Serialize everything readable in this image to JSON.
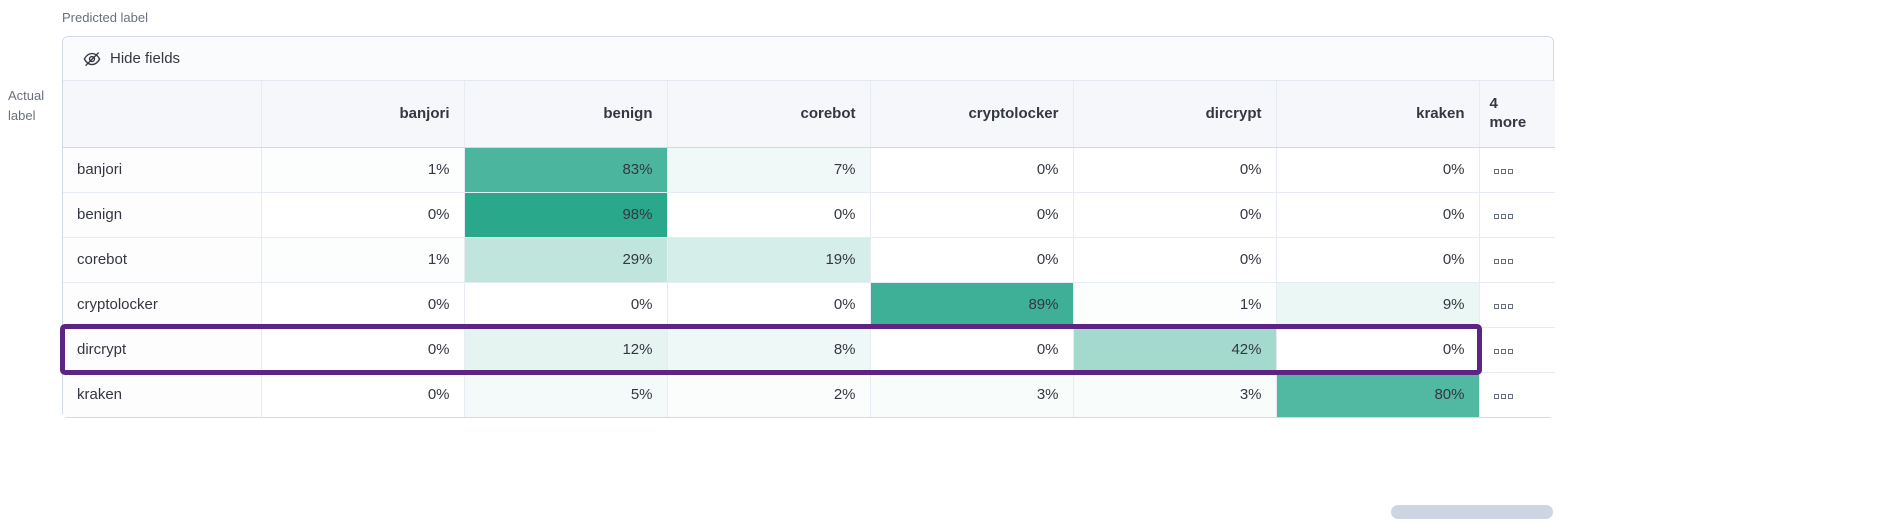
{
  "axes": {
    "predicted": "Predicted label",
    "actual": "Actual\nlabel"
  },
  "toolbar": {
    "hide_fields": "Hide fields",
    "hide_fields_icon": "eye-closed-icon"
  },
  "chart_data": {
    "type": "heatmap",
    "x_axis_label": "Predicted label",
    "y_axis_label": "Actual label",
    "columns": [
      "banjori",
      "benign",
      "corebot",
      "cryptolocker",
      "dircrypt",
      "kraken"
    ],
    "more_columns_label": "4 more",
    "rows": [
      {
        "label": "banjori",
        "values": [
          "1%",
          "83%",
          "7%",
          "0%",
          "0%",
          "0%"
        ]
      },
      {
        "label": "benign",
        "values": [
          "0%",
          "98%",
          "0%",
          "0%",
          "0%",
          "0%"
        ]
      },
      {
        "label": "corebot",
        "values": [
          "1%",
          "29%",
          "19%",
          "0%",
          "0%",
          "0%"
        ]
      },
      {
        "label": "cryptolocker",
        "values": [
          "0%",
          "0%",
          "0%",
          "89%",
          "1%",
          "9%"
        ]
      },
      {
        "label": "dircrypt",
        "values": [
          "0%",
          "12%",
          "8%",
          "0%",
          "42%",
          "0%"
        ],
        "highlighted": true
      },
      {
        "label": "kraken",
        "values": [
          "0%",
          "5%",
          "2%",
          "3%",
          "3%",
          "80%"
        ]
      }
    ],
    "value_range": [
      0,
      100
    ],
    "cell_value_unit": "%",
    "row_actions_icon": "boxes-horizontal-icon",
    "colors": {
      "heatmap_base": "#26a68a",
      "highlight_outline": "#5c2483"
    }
  }
}
